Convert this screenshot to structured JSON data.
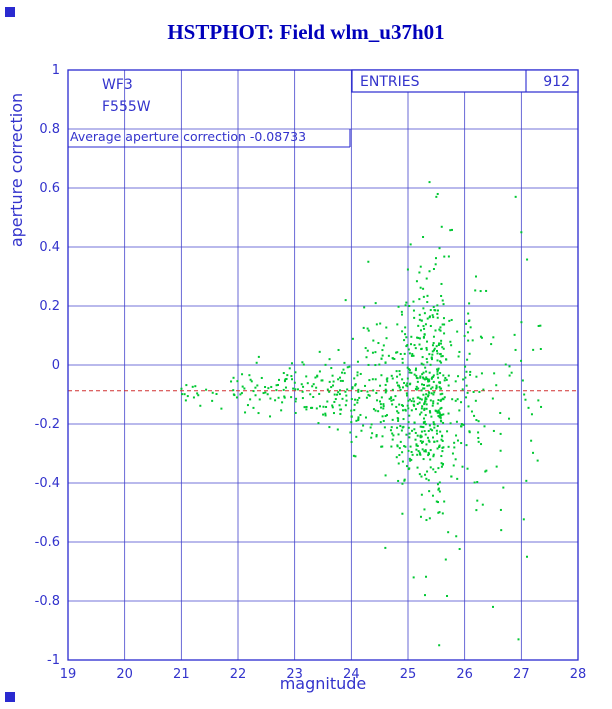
{
  "colors": {
    "title": "#0000bb",
    "frame": "#2a2ad0",
    "grid": "#4444cc",
    "text": "#3333cc",
    "point": "#00c832",
    "reference": "#d03030"
  },
  "chart_data": {
    "type": "scatter",
    "title": "HSTPHOT: Field wlm_u37h01",
    "xlabel": "magnitude",
    "ylabel": "aperture correction",
    "xlim": [
      19,
      28
    ],
    "ylim": [
      -1,
      1
    ],
    "x_ticks": [
      19,
      20,
      21,
      22,
      23,
      24,
      25,
      26,
      27,
      28
    ],
    "y_ticks": [
      -1,
      -0.8,
      -0.6,
      -0.4,
      -0.2,
      0,
      0.2,
      0.4,
      0.6,
      0.8,
      1
    ],
    "grid": true,
    "detector": "WF3",
    "filter": "F555W",
    "stats": {
      "label": "ENTRIES",
      "value": 912
    },
    "annotation": "Average aperture correction -0.08733",
    "average_aperture_correction": -0.08733,
    "reference_line": {
      "y": -0.08733,
      "style": "dashed"
    },
    "point_color": "#00c832",
    "seed": 12345,
    "y_clamp": [
      -0.97,
      0.86
    ],
    "clusters": [
      {
        "x_min": 21.0,
        "x_max": 22.2,
        "n": 30,
        "y_mean": -0.09,
        "y_sd": 0.03
      },
      {
        "x_min": 22.2,
        "x_max": 23.2,
        "n": 60,
        "y_mean": -0.09,
        "y_sd": 0.045
      },
      {
        "x_min": 23.2,
        "x_max": 24.0,
        "n": 75,
        "y_mean": -0.095,
        "y_sd": 0.07
      },
      {
        "x_min": 24.0,
        "x_max": 24.8,
        "n": 130,
        "y_mean": -0.1,
        "y_sd": 0.12
      },
      {
        "x_min": 24.8,
        "x_max": 25.2,
        "n": 150,
        "y_mean": -0.1,
        "y_sd": 0.16
      },
      {
        "x_min": 25.2,
        "x_max": 25.65,
        "n": 310,
        "y_mean": -0.1,
        "y_sd": 0.2
      },
      {
        "x_min": 25.65,
        "x_max": 26.3,
        "n": 95,
        "y_mean": -0.12,
        "y_sd": 0.22
      },
      {
        "x_min": 26.3,
        "x_max": 27.35,
        "n": 45,
        "y_mean": -0.14,
        "y_sd": 0.28
      }
    ],
    "outlier_points": [
      [
        25.38,
        0.62
      ],
      [
        25.5,
        0.57
      ],
      [
        27.0,
        0.45
      ],
      [
        26.9,
        0.57
      ],
      [
        25.3,
        -0.78
      ],
      [
        25.55,
        -0.95
      ],
      [
        26.5,
        -0.82
      ],
      [
        26.95,
        -0.93
      ],
      [
        27.1,
        -0.65
      ],
      [
        27.05,
        -0.1
      ],
      [
        27.3,
        -0.12
      ],
      [
        24.3,
        0.35
      ],
      [
        23.9,
        0.22
      ],
      [
        24.6,
        -0.62
      ],
      [
        25.1,
        -0.72
      ],
      [
        26.2,
        0.3
      ],
      [
        21.08,
        -0.12
      ]
    ]
  }
}
